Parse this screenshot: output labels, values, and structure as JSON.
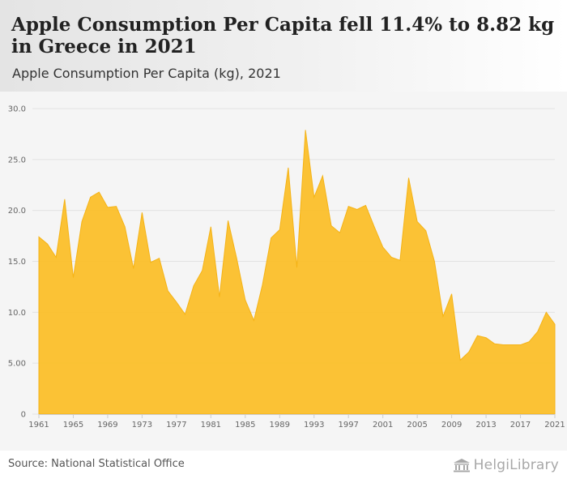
{
  "header": {
    "title": "Apple Consumption Per Capita fell 11.4% to 8.82 kg in Greece in 2021",
    "subtitle": "Apple Consumption Per Capita (kg), 2021"
  },
  "footer": {
    "source": "Source: National Statistical Office",
    "brand": "HelgiLibrary",
    "brand_icon": "library-building-icon"
  },
  "colors": {
    "area_fill": "#fbbf2a",
    "area_stroke": "#f5b316",
    "grid": "#e2e2e2",
    "axis": "#cccccc"
  },
  "chart_data": {
    "type": "area",
    "title": "Apple Consumption Per Capita (kg), 2021",
    "xlabel": "",
    "ylabel": "kg",
    "ylim": [
      0,
      30
    ],
    "grid": true,
    "y_ticks": [
      0,
      5,
      10,
      15,
      20,
      25,
      30
    ],
    "y_tick_labels": [
      "0",
      "5.00",
      "10.0",
      "15.0",
      "20.0",
      "25.0",
      "30.0"
    ],
    "x_ticks": [
      1961,
      1965,
      1969,
      1973,
      1977,
      1981,
      1985,
      1989,
      1993,
      1997,
      2001,
      2005,
      2009,
      2013,
      2017,
      2021
    ],
    "x_tick_labels": [
      "1961",
      "1965",
      "1969",
      "1973",
      "1977",
      "1981",
      "1985",
      "1989",
      "1993",
      "1997",
      "2001",
      "2005",
      "2009",
      "2013",
      "2017",
      "2021"
    ],
    "x": [
      1961,
      1962,
      1963,
      1964,
      1965,
      1966,
      1967,
      1968,
      1969,
      1970,
      1971,
      1972,
      1973,
      1974,
      1975,
      1976,
      1977,
      1978,
      1979,
      1980,
      1981,
      1982,
      1983,
      1984,
      1985,
      1986,
      1987,
      1988,
      1989,
      1990,
      1991,
      1992,
      1993,
      1994,
      1995,
      1996,
      1997,
      1998,
      1999,
      2000,
      2001,
      2002,
      2003,
      2004,
      2005,
      2006,
      2007,
      2008,
      2009,
      2010,
      2011,
      2012,
      2013,
      2014,
      2015,
      2016,
      2017,
      2018,
      2019,
      2020,
      2021
    ],
    "series": [
      {
        "name": "Apple Consumption Per Capita (kg)",
        "values": [
          17.4,
          16.7,
          15.4,
          21.1,
          13.4,
          18.9,
          21.3,
          21.8,
          20.3,
          20.4,
          18.4,
          14.3,
          19.8,
          14.9,
          15.3,
          12.1,
          11.0,
          9.8,
          12.6,
          14.1,
          18.4,
          11.5,
          19.0,
          15.3,
          11.2,
          9.2,
          12.7,
          17.3,
          18.1,
          24.2,
          14.4,
          27.9,
          21.3,
          23.4,
          18.5,
          17.8,
          20.4,
          20.1,
          20.5,
          18.4,
          16.4,
          15.4,
          15.1,
          23.2,
          18.9,
          18.0,
          15.0,
          9.6,
          11.8,
          5.3,
          6.1,
          7.7,
          7.5,
          6.9,
          6.8,
          6.8,
          6.8,
          7.1,
          8.1,
          10.0,
          8.82
        ]
      }
    ]
  }
}
